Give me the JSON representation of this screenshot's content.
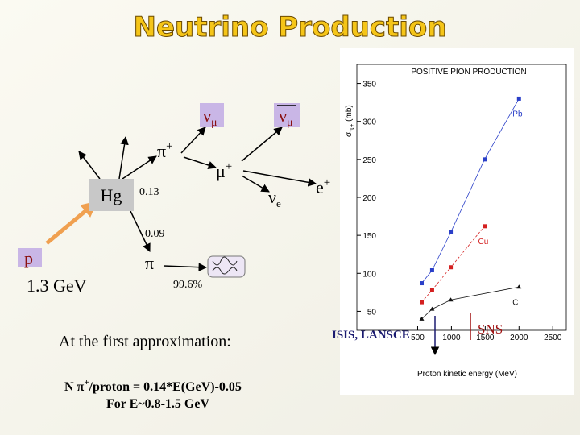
{
  "title": "Neutrino Production",
  "labels": {
    "nu_mu": {
      "text": "ν",
      "sub": "μ"
    },
    "nubar_mu": {
      "text": "ν",
      "sub": "μ"
    },
    "pi_plus": {
      "text": "π",
      "sup": "+"
    },
    "mu_plus": {
      "text": "μ",
      "sup": "+"
    },
    "hg": "Hg",
    "br1": "0.13",
    "nu_e": {
      "text": "ν",
      "sub": "e"
    },
    "e_plus": {
      "text": "e",
      "sup": "+"
    },
    "br2": "0.09",
    "p": "p",
    "pi": "π",
    "br3": "99.6%",
    "energy": "1.3 GeV",
    "isis": "ISIS, LANSCE",
    "sns": "SNS"
  },
  "text": {
    "approx": "At the first approximation:",
    "formula": {
      "before": "N π",
      "sup": "+",
      "after": "/proton = 0.14*E(GeV)-0.05"
    },
    "range": "For E~0.8-1.5 GeV"
  },
  "chart_data": {
    "type": "scatter",
    "title": "POSITIVE PION PRODUCTION",
    "xlabel": "Proton kinetic energy (MeV)",
    "ylabel": {
      "text": "σ",
      "sub": "π+",
      "after": " (mb)"
    },
    "xlim": [
      -400,
      2700
    ],
    "ylim": [
      25,
      375
    ],
    "xticks": [
      500,
      1000,
      1500,
      2000,
      2500
    ],
    "yticks": [
      50,
      100,
      150,
      200,
      250,
      300,
      350
    ],
    "series": [
      {
        "name": "Pb",
        "color": "#2a3fc8",
        "x": [
          560,
          714,
          990,
          1490,
          2000
        ],
        "values": [
          87,
          104,
          154,
          250,
          330
        ]
      },
      {
        "name": "Cu",
        "color": "#d42020",
        "x": [
          560,
          714,
          990,
          1490
        ],
        "values": [
          62,
          78,
          108,
          162
        ]
      },
      {
        "name": "C",
        "color": "#111111",
        "x": [
          560,
          714,
          990,
          2000
        ],
        "values": [
          40,
          53,
          65,
          82
        ]
      }
    ]
  }
}
